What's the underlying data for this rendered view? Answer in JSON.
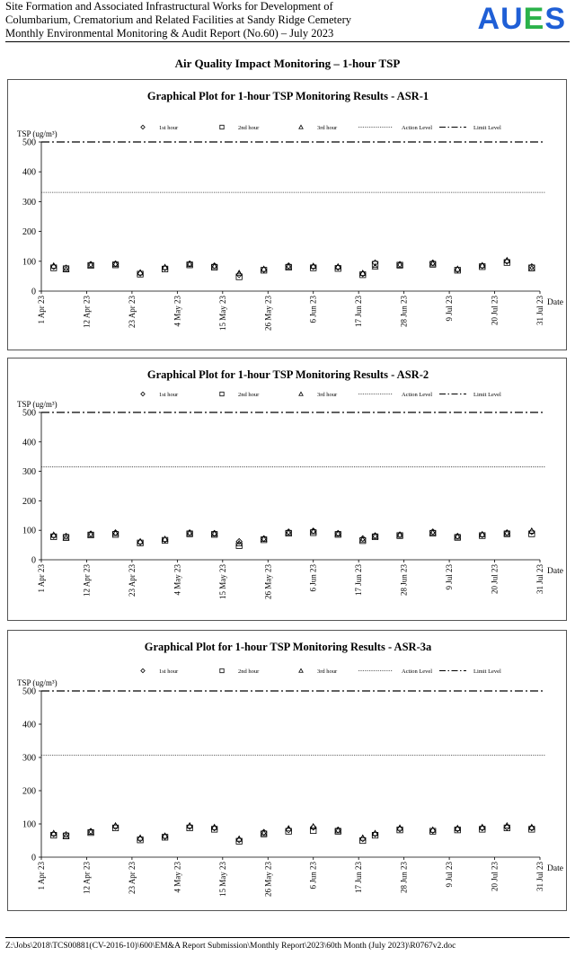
{
  "header": {
    "line1": "Site Formation and Associated Infrastructural Works for Development of",
    "line2": "Columbarium, Crematorium and Related Facilities at Sandy Ridge Cemetery",
    "line3": "Monthly Environmental Monitoring & Audit Report (No.60) – July 2023",
    "logo": {
      "A": "A",
      "U": "U",
      "E": "E",
      "S": "S"
    },
    "logo_colors": {
      "A": "#1f5fd6",
      "U": "#1f5fd6",
      "E": "#2bb24a",
      "S": "#1f5fd6"
    }
  },
  "section_title": "Air Quality Impact Monitoring – 1-hour TSP",
  "footer": "Z:\\Jobs\\2018\\TCS00881(CV-2016-10)\\600\\EM&A Report Submission\\Monthly Report\\2023\\60th Month (July 2023)\\R0767v2.doc",
  "chart_data": [
    {
      "type": "scatter",
      "title": "Graphical  Plot for 1-hour TSP Monitoring Results - ASR-1",
      "ylabel": "TSP (ug/m³)",
      "xlabel": "Date",
      "ylim": [
        0,
        500
      ],
      "yticks": [
        0,
        100,
        200,
        300,
        400,
        500
      ],
      "xlim": [
        "2023-04-01",
        "2023-07-31"
      ],
      "xticks": [
        "1 Apr 23",
        "12 Apr 23",
        "23 Apr 23",
        "4 May 23",
        "15 May 23",
        "26 May 23",
        "6 Jun 23",
        "17 Jun 23",
        "28 Jun 23",
        "9 Jul 23",
        "20 Jul 23",
        "31 Jul 23"
      ],
      "legend": [
        "1st hour",
        "2nd hour",
        "3rd hour",
        "Action Level",
        "Limit Level"
      ],
      "legend_position": "top",
      "action_level": 331,
      "limit_level": 500,
      "x": [
        "2023-04-04",
        "2023-04-07",
        "2023-04-13",
        "2023-04-19",
        "2023-04-25",
        "2023-05-01",
        "2023-05-07",
        "2023-05-13",
        "2023-05-19",
        "2023-05-25",
        "2023-05-31",
        "2023-06-06",
        "2023-06-12",
        "2023-06-18",
        "2023-06-21",
        "2023-06-27",
        "2023-07-05",
        "2023-07-11",
        "2023-07-17",
        "2023-07-23",
        "2023-07-29"
      ],
      "series": [
        {
          "name": "1st hour",
          "values": [
            82,
            78,
            90,
            92,
            60,
            78,
            92,
            85,
            55,
            72,
            85,
            82,
            80,
            58,
            95,
            90,
            95,
            72,
            85,
            100,
            82
          ]
        },
        {
          "name": "2nd hour",
          "values": [
            78,
            75,
            86,
            88,
            57,
            74,
            88,
            80,
            48,
            70,
            80,
            78,
            76,
            55,
            90,
            87,
            90,
            70,
            82,
            96,
            78
          ]
        },
        {
          "name": "3rd hour",
          "values": [
            85,
            72,
            88,
            90,
            62,
            80,
            90,
            83,
            60,
            74,
            82,
            84,
            82,
            60,
            82,
            88,
            92,
            74,
            86,
            103,
            76
          ]
        }
      ]
    },
    {
      "type": "scatter",
      "title": "Graphical  Plot for 1-hour TSP Monitoring Results - ASR-2",
      "ylabel": "TSP (ug/m³)",
      "xlabel": "Date",
      "ylim": [
        0,
        500
      ],
      "yticks": [
        0,
        100,
        200,
        300,
        400,
        500
      ],
      "xlim": [
        "2023-04-01",
        "2023-07-31"
      ],
      "xticks": [
        "1 Apr 23",
        "12 Apr 23",
        "23 Apr 23",
        "4 May 23",
        "15 May 23",
        "26 May 23",
        "6 Jun 23",
        "17 Jun 23",
        "28 Jun 23",
        "9 Jul 23",
        "20 Jul 23",
        "31 Jul 23"
      ],
      "legend": [
        "1st hour",
        "2nd hour",
        "3rd hour",
        "Action Level",
        "Limit Level"
      ],
      "legend_position": "top",
      "action_level": 315,
      "limit_level": 500,
      "x": [
        "2023-04-04",
        "2023-04-07",
        "2023-04-13",
        "2023-04-19",
        "2023-04-25",
        "2023-05-01",
        "2023-05-07",
        "2023-05-13",
        "2023-05-19",
        "2023-05-25",
        "2023-05-31",
        "2023-06-06",
        "2023-06-12",
        "2023-06-18",
        "2023-06-21",
        "2023-06-27",
        "2023-07-05",
        "2023-07-11",
        "2023-07-17",
        "2023-07-23",
        "2023-07-29"
      ],
      "series": [
        {
          "name": "1st hour",
          "values": [
            82,
            80,
            88,
            92,
            60,
            68,
            92,
            90,
            62,
            72,
            95,
            98,
            90,
            72,
            82,
            85,
            95,
            80,
            85,
            92,
            95
          ]
        },
        {
          "name": "2nd hour",
          "values": [
            78,
            76,
            84,
            86,
            57,
            66,
            88,
            86,
            48,
            68,
            90,
            92,
            86,
            65,
            78,
            82,
            90,
            76,
            82,
            88,
            88
          ]
        },
        {
          "name": "3rd hour",
          "values": [
            84,
            74,
            86,
            90,
            62,
            70,
            90,
            88,
            55,
            70,
            92,
            96,
            88,
            68,
            80,
            84,
            92,
            78,
            86,
            90,
            98
          ]
        }
      ]
    },
    {
      "type": "scatter",
      "title": "Graphical  Plot for 1-hour TSP Monitoring Results - ASR-3a",
      "ylabel": "TSP (ug/m³)",
      "xlabel": "Date",
      "ylim": [
        0,
        500
      ],
      "yticks": [
        0,
        100,
        200,
        300,
        400,
        500
      ],
      "xlim": [
        "2023-04-01",
        "2023-07-31"
      ],
      "xticks": [
        "1 Apr 23",
        "12 Apr 23",
        "23 Apr 23",
        "4 May 23",
        "15 May 23",
        "26 May 23",
        "6 Jun 23",
        "17 Jun 23",
        "28 Jun 23",
        "9 Jul 23",
        "20 Jul 23",
        "31 Jul 23"
      ],
      "legend": [
        "1st hour",
        "2nd hour",
        "3rd hour",
        "Action Level",
        "Limit Level"
      ],
      "legend_position": "top",
      "action_level": 307,
      "limit_level": 500,
      "x": [
        "2023-04-04",
        "2023-04-07",
        "2023-04-13",
        "2023-04-19",
        "2023-04-25",
        "2023-05-01",
        "2023-05-07",
        "2023-05-13",
        "2023-05-19",
        "2023-05-25",
        "2023-05-31",
        "2023-06-06",
        "2023-06-12",
        "2023-06-18",
        "2023-06-21",
        "2023-06-27",
        "2023-07-05",
        "2023-07-11",
        "2023-07-17",
        "2023-07-23",
        "2023-07-29"
      ],
      "series": [
        {
          "name": "1st hour",
          "values": [
            70,
            68,
            78,
            92,
            55,
            62,
            92,
            88,
            52,
            75,
            82,
            90,
            82,
            55,
            70,
            85,
            80,
            85,
            88,
            90,
            88
          ]
        },
        {
          "name": "2nd hour",
          "values": [
            66,
            64,
            74,
            88,
            52,
            60,
            88,
            84,
            48,
            70,
            78,
            80,
            78,
            50,
            66,
            82,
            78,
            82,
            84,
            88,
            84
          ]
        },
        {
          "name": "3rd hour",
          "values": [
            72,
            62,
            76,
            95,
            58,
            64,
            95,
            90,
            55,
            72,
            86,
            92,
            80,
            58,
            72,
            88,
            82,
            87,
            90,
            95,
            90
          ]
        }
      ]
    }
  ]
}
